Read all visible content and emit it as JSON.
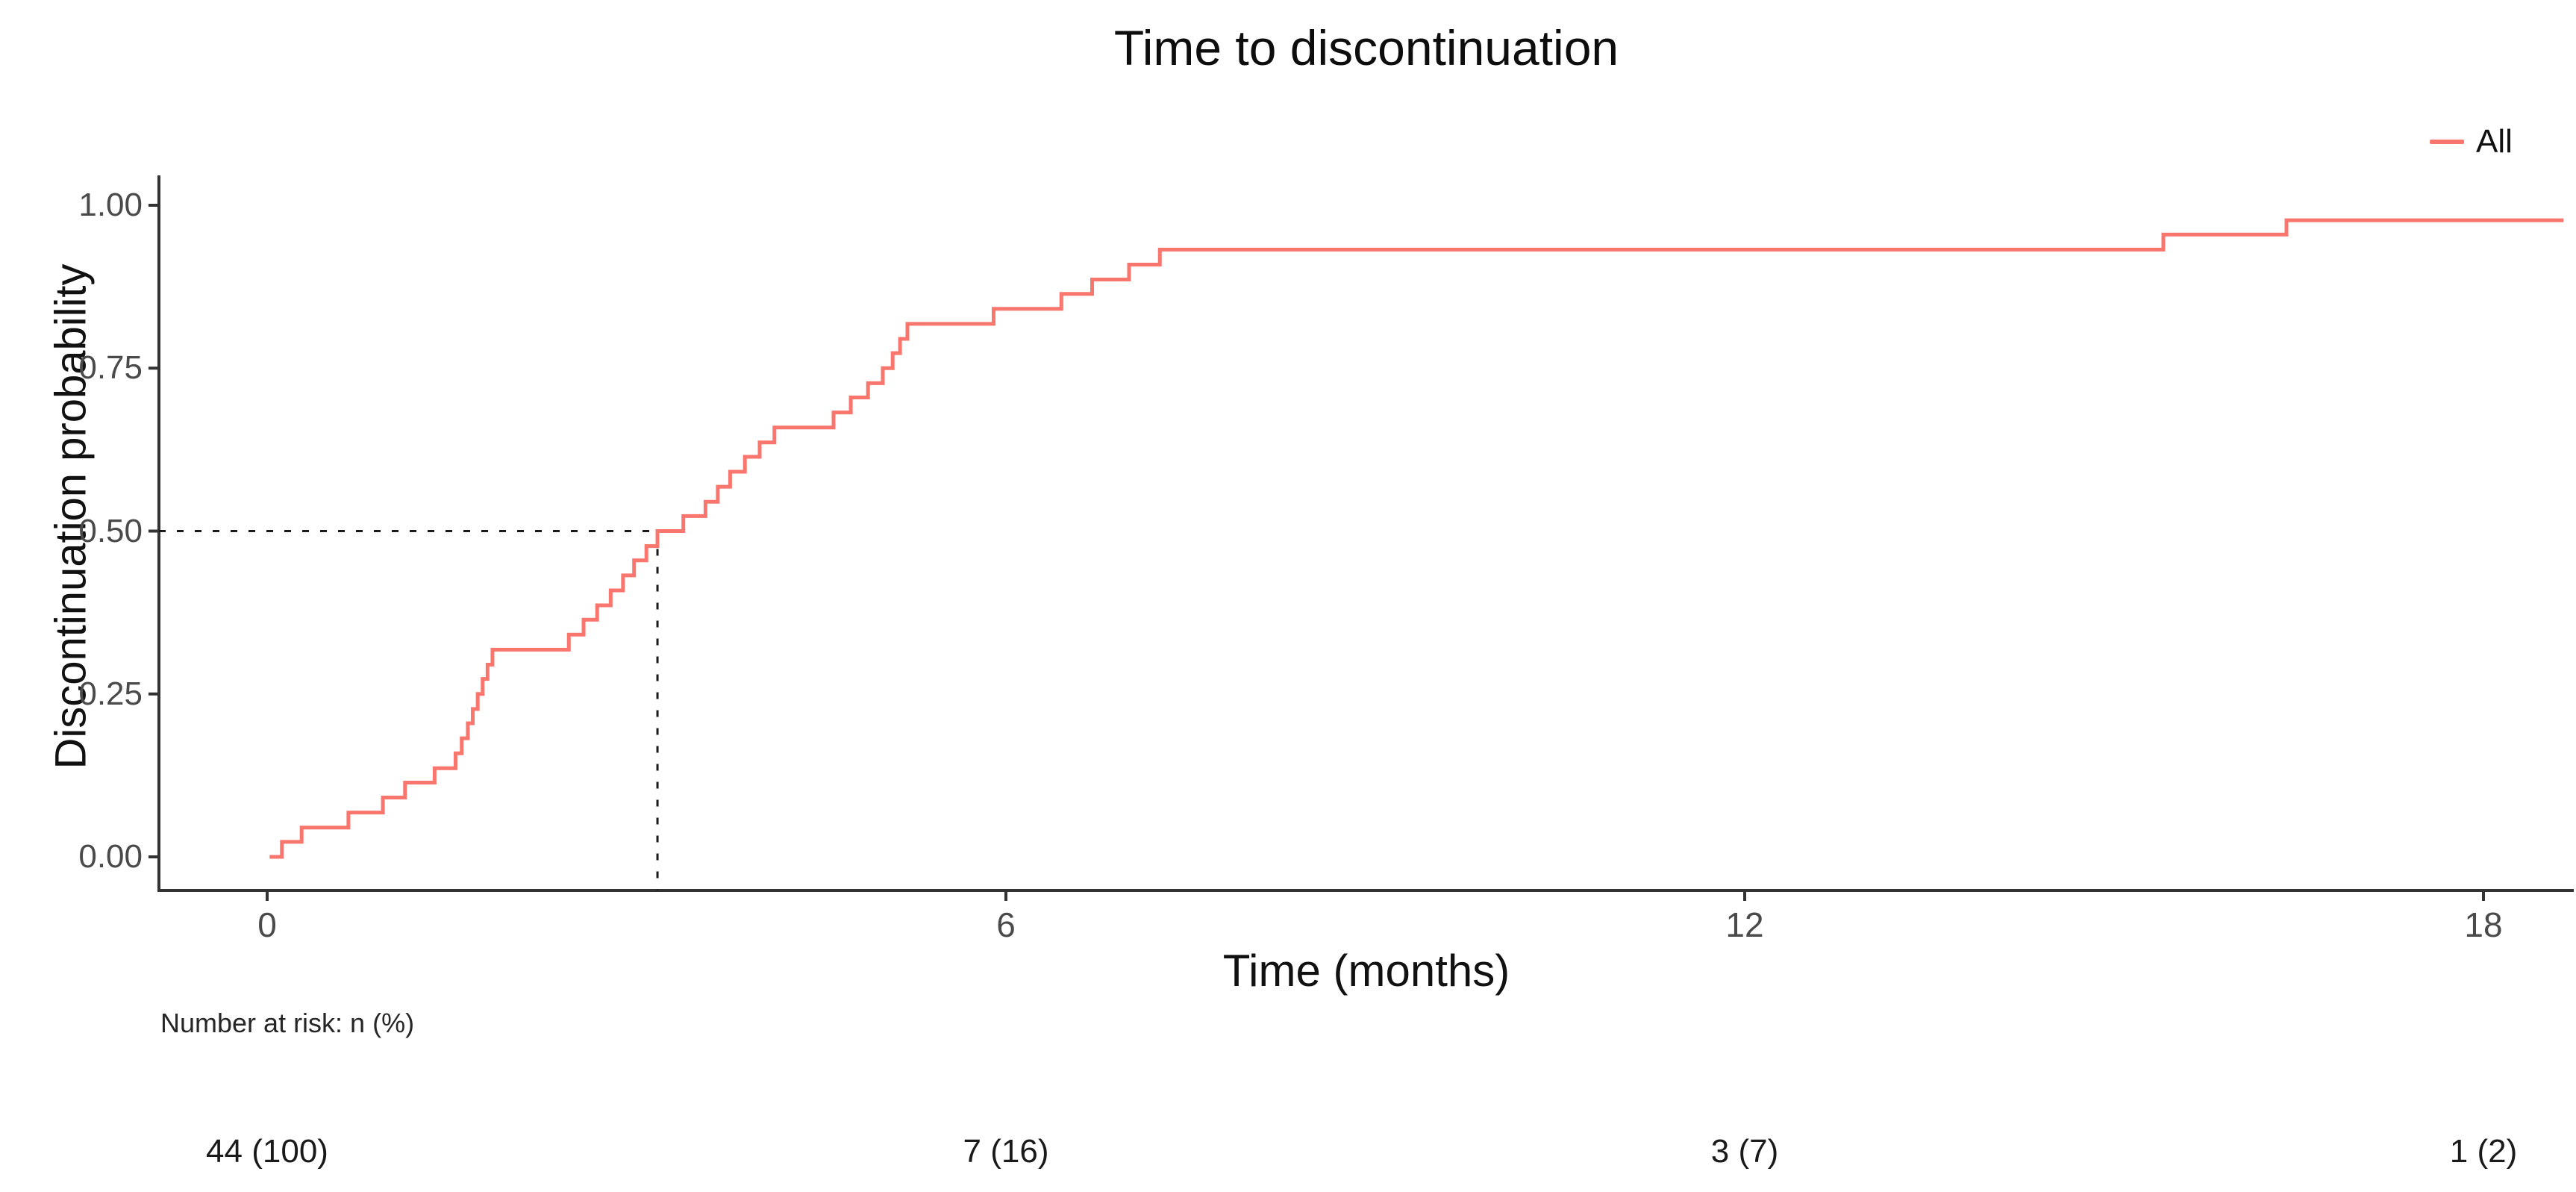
{
  "title": "Time to discontinuation",
  "legend": {
    "label": "All",
    "color": "#F8766D"
  },
  "axes": {
    "x": {
      "label": "Time (months)",
      "ticks": [
        "0",
        "6",
        "12",
        "18"
      ],
      "tick_values": [
        0,
        6,
        12,
        18
      ]
    },
    "y": {
      "label": "Discontinuation probability",
      "ticks": [
        "0.00",
        "0.25",
        "0.50",
        "0.75",
        "1.00"
      ],
      "tick_values": [
        0,
        0.25,
        0.5,
        0.75,
        1
      ]
    }
  },
  "median_annotation": {
    "time": 3.17,
    "probability": 0.5,
    "line_style": "dashed",
    "color": "#1a1a1a"
  },
  "risk_table": {
    "header": "Number at risk: n (%)",
    "times": [
      0,
      6,
      12,
      18
    ],
    "values": [
      "44 (100)",
      "7 (16)",
      "3 (7)",
      "1 (2)"
    ]
  },
  "chart_data": {
    "type": "line",
    "subtype": "step",
    "title": "Time to discontinuation",
    "xlabel": "Time (months)",
    "ylabel": "Discontinuation probability",
    "xlim": [
      -0.9,
      18.8
    ],
    "ylim": [
      0,
      1.04
    ],
    "grid": false,
    "legend_position": "top-right",
    "x_ticks": [
      0,
      6,
      12,
      18
    ],
    "y_ticks": [
      0,
      0.25,
      0.5,
      0.75,
      1
    ],
    "series": [
      {
        "name": "All",
        "color": "#F8766D",
        "points": [
          [
            0.02,
            0.0
          ],
          [
            0.12,
            0.023
          ],
          [
            0.28,
            0.045
          ],
          [
            0.66,
            0.068
          ],
          [
            0.94,
            0.091
          ],
          [
            1.12,
            0.114
          ],
          [
            1.36,
            0.136
          ],
          [
            1.53,
            0.159
          ],
          [
            1.58,
            0.182
          ],
          [
            1.63,
            0.205
          ],
          [
            1.67,
            0.227
          ],
          [
            1.71,
            0.25
          ],
          [
            1.75,
            0.273
          ],
          [
            1.79,
            0.295
          ],
          [
            1.83,
            0.318
          ],
          [
            2.45,
            0.341
          ],
          [
            2.57,
            0.364
          ],
          [
            2.68,
            0.386
          ],
          [
            2.79,
            0.409
          ],
          [
            2.89,
            0.432
          ],
          [
            2.98,
            0.455
          ],
          [
            3.08,
            0.477
          ],
          [
            3.17,
            0.5
          ],
          [
            3.38,
            0.523
          ],
          [
            3.56,
            0.545
          ],
          [
            3.66,
            0.568
          ],
          [
            3.76,
            0.591
          ],
          [
            3.88,
            0.614
          ],
          [
            4.0,
            0.636
          ],
          [
            4.12,
            0.659
          ],
          [
            4.6,
            0.682
          ],
          [
            4.74,
            0.705
          ],
          [
            4.88,
            0.727
          ],
          [
            5.0,
            0.75
          ],
          [
            5.08,
            0.773
          ],
          [
            5.14,
            0.795
          ],
          [
            5.2,
            0.818
          ],
          [
            5.9,
            0.841
          ],
          [
            6.45,
            0.864
          ],
          [
            6.7,
            0.886
          ],
          [
            7.0,
            0.909
          ],
          [
            7.25,
            0.932
          ],
          [
            15.4,
            0.955
          ],
          [
            16.4,
            0.977
          ],
          [
            18.65,
            0.977
          ]
        ]
      }
    ]
  }
}
